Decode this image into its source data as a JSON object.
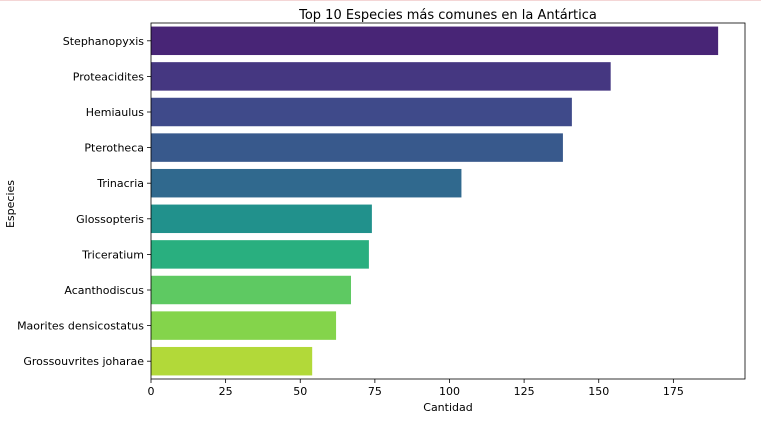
{
  "chart_data": {
    "type": "bar",
    "orientation": "horizontal",
    "title": "Top 10 Especies más comunes en la Antártica",
    "xlabel": "Cantidad",
    "ylabel": "Especies",
    "xlim": [
      0,
      199
    ],
    "xticks": [
      0,
      25,
      50,
      75,
      100,
      125,
      150,
      175
    ],
    "categories": [
      "Stephanopyxis",
      "Proteacidites",
      "Hemiaulus",
      "Pterotheca",
      "Trinacria",
      "Glossopteris",
      "Triceratium",
      "Acanthodiscus",
      "Maorites densicostatus",
      "Grossouvrites joharae"
    ],
    "values": [
      190,
      154,
      141,
      138,
      104,
      74,
      73,
      67,
      62,
      54
    ],
    "colors": [
      "#482576",
      "#453781",
      "#3f4a8a",
      "#38598c",
      "#30698e",
      "#21918c",
      "#29af7f",
      "#5ec962",
      "#84d44b",
      "#b2d939"
    ],
    "grid": false,
    "legend": "none"
  }
}
